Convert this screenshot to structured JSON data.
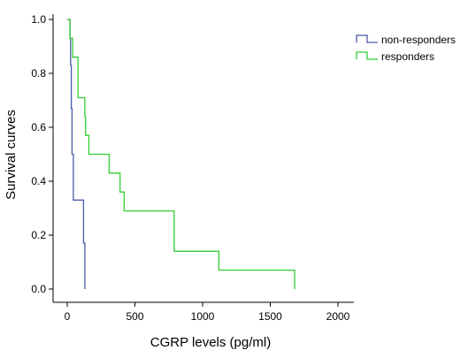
{
  "chart_data": {
    "type": "line",
    "step": true,
    "xlabel": "CGRP levels (pg/ml)",
    "ylabel": "Survival curves",
    "xlim": [
      0,
      2000
    ],
    "ylim": [
      0,
      1.0
    ],
    "x_ticks": [
      "0",
      "500",
      "1000",
      "1500",
      "2000"
    ],
    "y_ticks": [
      "0.0",
      "0.2",
      "0.4",
      "0.6",
      "0.8",
      "1.0"
    ],
    "grid": false,
    "legend_position": "top-right",
    "series": [
      {
        "name": "non-responders",
        "color": "#4a5aa8",
        "x": [
          0,
          20,
          20,
          25,
          25,
          30,
          30,
          35,
          35,
          45,
          45,
          50,
          50,
          120,
          120,
          130,
          130
        ],
        "y": [
          1.0,
          1.0,
          0.93,
          0.93,
          0.83,
          0.83,
          0.67,
          0.67,
          0.5,
          0.5,
          0.33,
          0.33,
          0.33,
          0.33,
          0.17,
          0.17,
          0.0
        ]
      },
      {
        "name": "responders",
        "color": "#33cc33",
        "x": [
          0,
          20,
          20,
          40,
          40,
          80,
          80,
          130,
          130,
          135,
          135,
          160,
          160,
          310,
          310,
          390,
          390,
          420,
          420,
          790,
          790,
          1120,
          1120,
          1680,
          1680
        ],
        "y": [
          1.0,
          1.0,
          0.93,
          0.93,
          0.86,
          0.86,
          0.71,
          0.71,
          0.64,
          0.64,
          0.57,
          0.57,
          0.5,
          0.5,
          0.43,
          0.43,
          0.36,
          0.36,
          0.29,
          0.29,
          0.14,
          0.14,
          0.07,
          0.07,
          0.0
        ]
      }
    ]
  }
}
